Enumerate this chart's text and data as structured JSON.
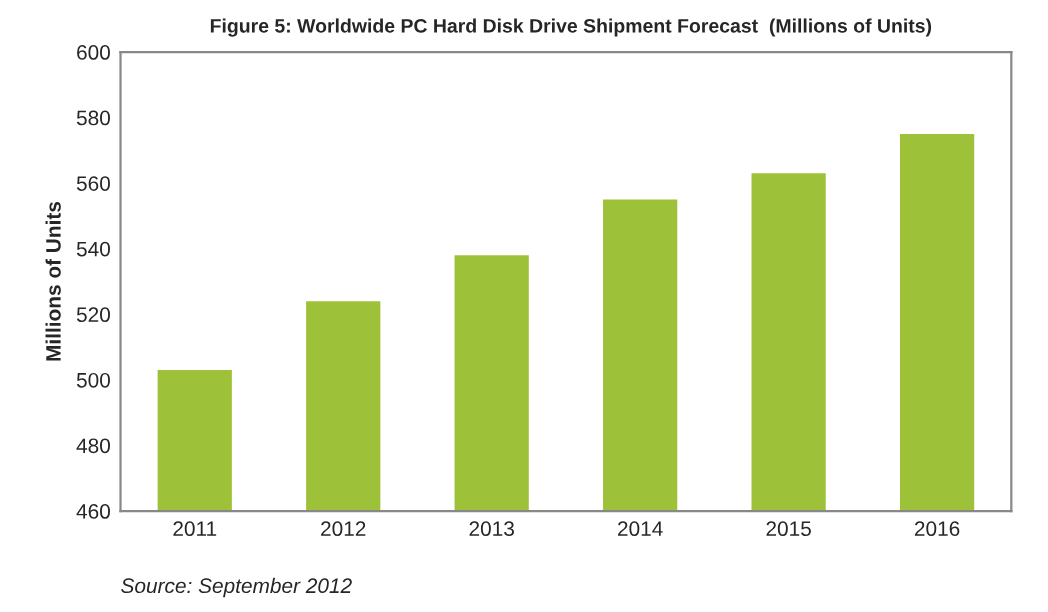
{
  "chart_data": {
    "type": "bar",
    "title": "Figure 5: Worldwide PC Hard Disk Drive Shipment Forecast  (Millions of Units)",
    "ylabel": "Millions of Units",
    "categories": [
      "2011",
      "2012",
      "2013",
      "2014",
      "2015",
      "2016"
    ],
    "values": [
      503,
      524,
      538,
      555,
      563,
      575
    ],
    "color": "#9dc23a",
    "ylim": [
      460,
      600
    ],
    "yticks": [
      460,
      480,
      500,
      520,
      540,
      560,
      580,
      600
    ],
    "grid": false,
    "annotations": [
      "Source: September 2012"
    ]
  }
}
